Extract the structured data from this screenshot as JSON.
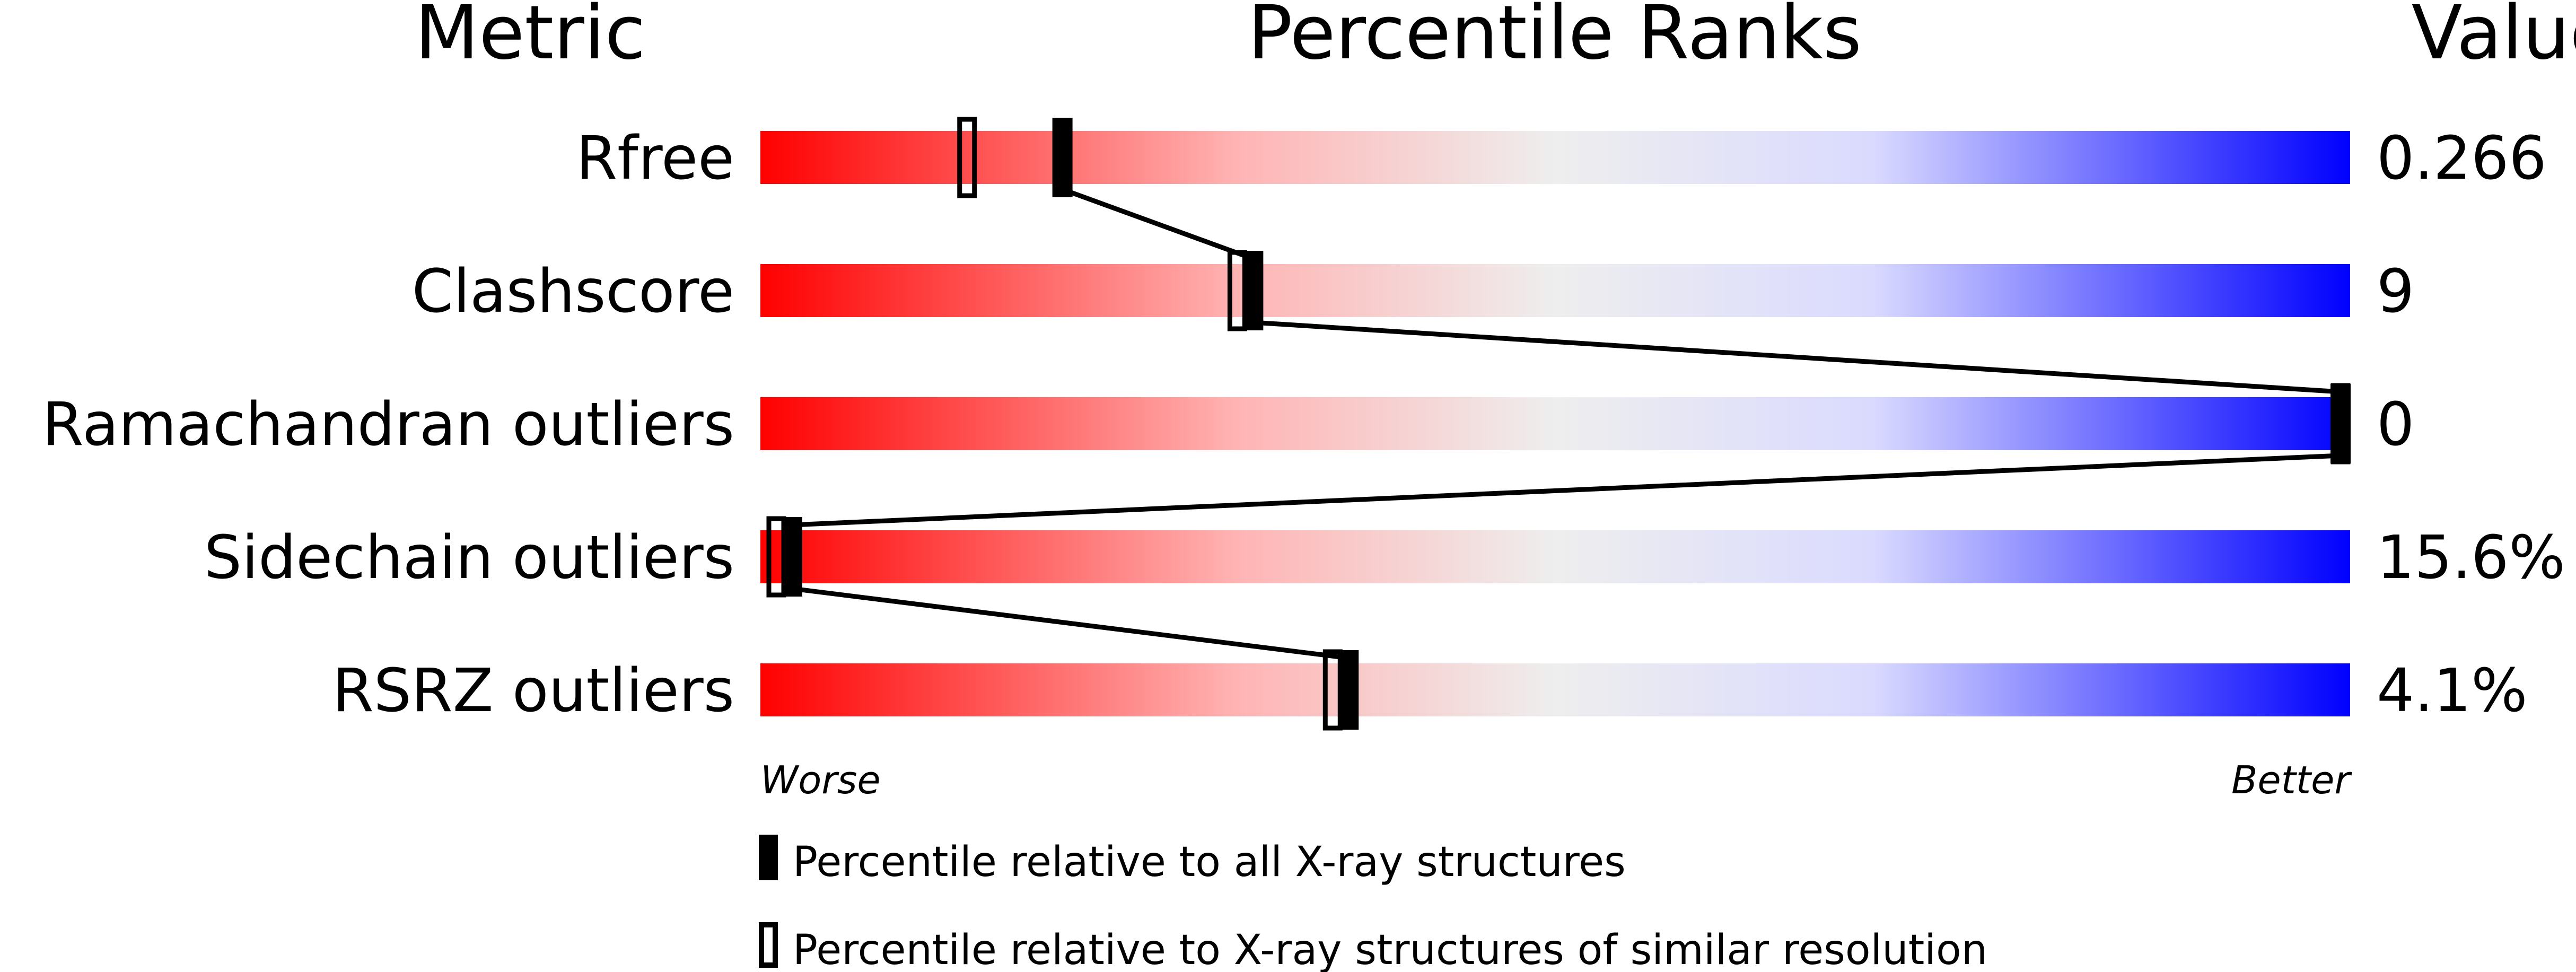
{
  "chart_data": {
    "type": "percentile-slider",
    "headers": {
      "metric": "Metric",
      "ranks": "Percentile Ranks",
      "value": "Value"
    },
    "xlim": [
      0,
      100
    ],
    "axis_labels": {
      "left": "Worse",
      "right": "Better"
    },
    "gradient_colors": [
      "#ff0000",
      "#eeeeee",
      "#0000ff"
    ],
    "metrics": [
      {
        "name": "Rfree",
        "value": "0.266",
        "percentile_all": 19,
        "percentile_similar": 13
      },
      {
        "name": "Clashscore",
        "value": "9",
        "percentile_all": 31,
        "percentile_similar": 30
      },
      {
        "name": "Ramachandran outliers",
        "value": "0",
        "percentile_all": 100,
        "percentile_similar": 100
      },
      {
        "name": "Sidechain outliers",
        "value": "15.6%",
        "percentile_all": 2,
        "percentile_similar": 1
      },
      {
        "name": "RSRZ outliers",
        "value": "4.1%",
        "percentile_all": 37,
        "percentile_similar": 36
      }
    ],
    "legend": [
      {
        "marker": "filled",
        "label": "Percentile relative to all X-ray structures"
      },
      {
        "marker": "open",
        "label": "Percentile relative to X-ray structures of similar resolution"
      }
    ]
  }
}
